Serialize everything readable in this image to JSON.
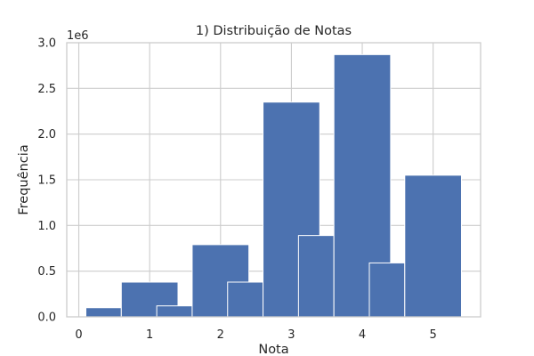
{
  "chart_data": {
    "type": "bar",
    "subtype": "histogram",
    "title": "1) Distribuição de Notas",
    "xlabel": "Nota",
    "ylabel": "Frequência",
    "y_offset_label": "1e6",
    "xlim": [
      -0.17,
      5.67
    ],
    "ylim": [
      0,
      3.0
    ],
    "x_ticks": [
      0,
      1,
      2,
      3,
      4,
      5
    ],
    "x_tick_labels": [
      "0",
      "1",
      "2",
      "3",
      "4",
      "5"
    ],
    "y_ticks": [
      0,
      0.5,
      1.0,
      1.5,
      2.0,
      2.5,
      3.0
    ],
    "y_tick_labels": [
      "0.0",
      "0.5",
      "1.0",
      "1.5",
      "2.0",
      "2.5",
      "3.0"
    ],
    "grid": true,
    "bar_color": "#4c72b0",
    "bins": [
      {
        "x_start": 0.1,
        "x_end": 0.6,
        "value": 0.1
      },
      {
        "x_start": 0.6,
        "x_end": 1.4,
        "value": 0.38
      },
      {
        "x_start": 1.1,
        "x_end": 1.6,
        "value": 0.12
      },
      {
        "x_start": 1.6,
        "x_end": 2.4,
        "value": 0.79
      },
      {
        "x_start": 2.1,
        "x_end": 2.6,
        "value": 0.38
      },
      {
        "x_start": 2.6,
        "x_end": 3.4,
        "value": 2.35
      },
      {
        "x_start": 3.1,
        "x_end": 3.6,
        "value": 0.89
      },
      {
        "x_start": 3.6,
        "x_end": 4.4,
        "value": 2.87
      },
      {
        "x_start": 4.1,
        "x_end": 4.6,
        "value": 0.59
      },
      {
        "x_start": 4.6,
        "x_end": 5.4,
        "value": 1.55
      }
    ]
  }
}
